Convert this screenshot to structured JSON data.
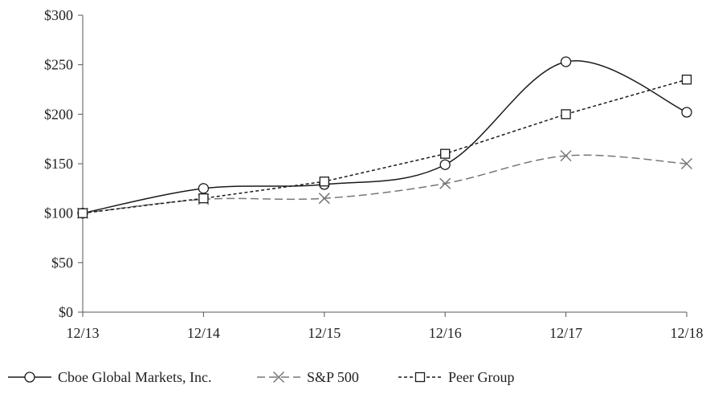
{
  "chart_data": {
    "type": "line",
    "title": "",
    "xlabel": "",
    "ylabel": "",
    "categories": [
      "12/13",
      "12/14",
      "12/15",
      "12/16",
      "12/17",
      "12/18"
    ],
    "yticks": [
      "$0",
      "$50",
      "$100",
      "$150",
      "$200",
      "$250",
      "$300"
    ],
    "ylim": [
      0,
      300
    ],
    "grid": false,
    "legend_position": "bottom",
    "series": [
      {
        "name": "Cboe Global Markets, Inc.",
        "values": [
          100,
          125,
          129,
          149,
          253,
          202
        ],
        "color": "#1a1a1a",
        "line": "solid",
        "marker": "circle",
        "smooth": true
      },
      {
        "name": "S&P 500",
        "values": [
          100,
          114,
          115,
          130,
          158,
          150
        ],
        "color": "#777777",
        "line": "dashed",
        "marker": "x",
        "smooth": true
      },
      {
        "name": "Peer Group",
        "values": [
          100,
          115,
          132,
          160,
          200,
          235
        ],
        "color": "#1a1a1a",
        "line": "dotted",
        "marker": "square",
        "smooth": false
      }
    ]
  }
}
